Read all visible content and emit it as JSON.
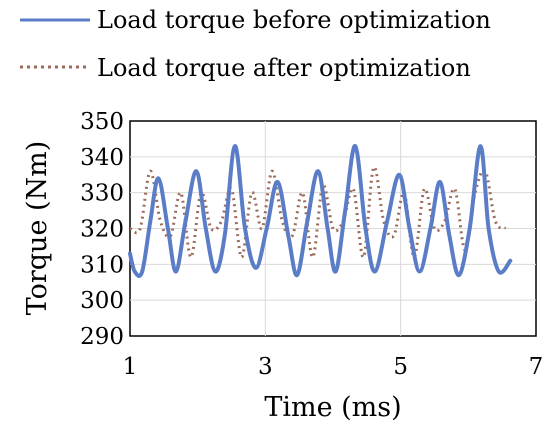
{
  "chart_data": {
    "type": "line",
    "title": "",
    "xlabel": "Time (ms)",
    "ylabel": "Torque (Nm)",
    "xlim": [
      1,
      7
    ],
    "ylim": [
      290,
      350
    ],
    "x_ticks": [
      "1",
      "3",
      "5",
      "7"
    ],
    "y_ticks": [
      "350",
      "340",
      "330",
      "320",
      "310",
      "300",
      "290"
    ],
    "grid": true,
    "legend_position": "top",
    "series": [
      {
        "name": "Load torque before optimization",
        "color": "#5b7dc8",
        "style": "solid",
        "x": [
          1.0,
          1.07,
          1.18,
          1.3,
          1.42,
          1.56,
          1.68,
          1.82,
          1.98,
          2.12,
          2.26,
          2.4,
          2.55,
          2.7,
          2.86,
          3.02,
          3.18,
          3.34,
          3.47,
          3.62,
          3.78,
          3.92,
          4.04,
          4.18,
          4.33,
          4.48,
          4.62,
          4.8,
          4.98,
          5.13,
          5.28,
          5.44,
          5.58,
          5.72,
          5.86,
          6.02,
          6.18,
          6.3,
          6.45,
          6.62
        ],
        "y": [
          313,
          308,
          308,
          322,
          334,
          320,
          308,
          322,
          336,
          320,
          308,
          318,
          343,
          320,
          309,
          320,
          333,
          318,
          307,
          322,
          336,
          320,
          308,
          325,
          343,
          320,
          308,
          322,
          335,
          320,
          308,
          320,
          333,
          318,
          307,
          320,
          343,
          320,
          308,
          311
        ]
      },
      {
        "name": "Load torque after optimization",
        "color": "#9c6b5a",
        "style": "dotted",
        "x": [
          1.0,
          1.15,
          1.3,
          1.45,
          1.6,
          1.75,
          1.9,
          2.05,
          2.2,
          2.35,
          2.5,
          2.65,
          2.8,
          2.95,
          3.1,
          3.25,
          3.4,
          3.55,
          3.7,
          3.85,
          4.0,
          4.15,
          4.3,
          4.45,
          4.6,
          4.75,
          4.9,
          5.05,
          5.2,
          5.35,
          5.5,
          5.65,
          5.8,
          5.95,
          6.1,
          6.25,
          6.4,
          6.55
        ],
        "y": [
          320,
          320,
          336,
          322,
          318,
          330,
          312,
          330,
          320,
          322,
          331,
          312,
          330,
          320,
          336,
          322,
          318,
          330,
          312,
          332,
          320,
          322,
          331,
          312,
          337,
          322,
          318,
          330,
          312,
          331,
          320,
          322,
          331,
          314,
          330,
          336,
          322,
          320
        ]
      }
    ]
  }
}
